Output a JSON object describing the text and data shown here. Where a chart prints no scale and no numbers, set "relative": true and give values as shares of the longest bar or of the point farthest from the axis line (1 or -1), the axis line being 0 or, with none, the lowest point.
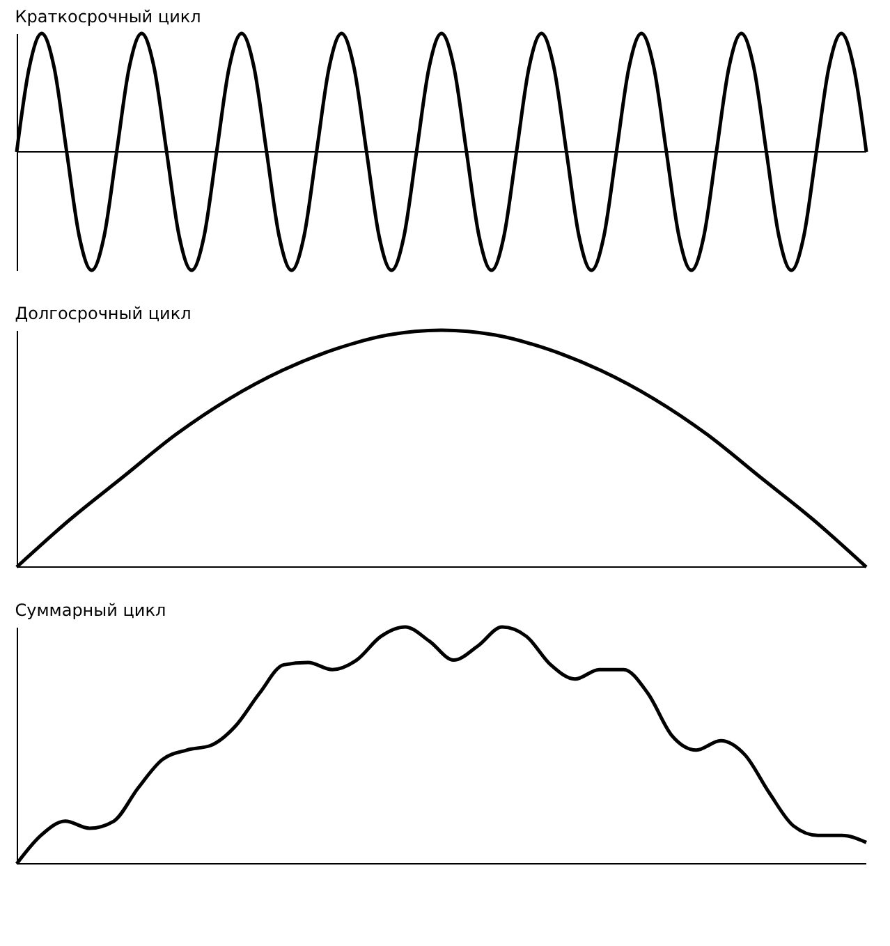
{
  "chart_data": [
    {
      "type": "line",
      "title": "Краткосрочный цикл",
      "relative": true,
      "color": "#000000",
      "categories": [
        null,
        null,
        null,
        null,
        null,
        null,
        null,
        null,
        null,
        null,
        null,
        null,
        null,
        null,
        null,
        null,
        null,
        null,
        null,
        null,
        null,
        null,
        null,
        null,
        null,
        null,
        null,
        null,
        null,
        null,
        null,
        null,
        null,
        null,
        null,
        null,
        null,
        null,
        null,
        null,
        null,
        null,
        null,
        null,
        null,
        null,
        null,
        null,
        null,
        null,
        null,
        null,
        null,
        null,
        null,
        null,
        null,
        null,
        null,
        null,
        null,
        null,
        null,
        null,
        null,
        null,
        null,
        null,
        null
      ],
      "values": [
        0,
        0.71,
        1,
        0.71,
        0,
        -0.71,
        -1,
        -0.71,
        0,
        0.71,
        1,
        0.71,
        0,
        -0.71,
        -1,
        -0.71,
        0,
        0.71,
        1,
        0.71,
        0,
        -0.71,
        -1,
        -0.71,
        0,
        0.71,
        1,
        0.71,
        0,
        -0.71,
        -1,
        -0.71,
        0,
        0.71,
        1,
        0.71,
        0,
        -0.71,
        -1,
        -0.71,
        0,
        0.71,
        1,
        0.71,
        0,
        -0.71,
        -1,
        -0.71,
        0,
        0.71,
        1,
        0.71,
        0,
        -0.71,
        -1,
        -0.71,
        0,
        0.71,
        1,
        0.71,
        0,
        -0.71,
        -1,
        -0.71,
        0,
        0.71,
        1,
        0.71,
        0
      ]
    },
    {
      "type": "line",
      "title": "Долгосрочный цикл",
      "relative": true,
      "color": "#000000",
      "categories": [
        null,
        null,
        null,
        null,
        null,
        null,
        null,
        null,
        null,
        null,
        null,
        null,
        null,
        null,
        null,
        null,
        null
      ],
      "values": [
        0,
        0.2,
        0.38,
        0.56,
        0.71,
        0.83,
        0.92,
        0.98,
        1,
        0.98,
        0.92,
        0.83,
        0.71,
        0.56,
        0.38,
        0.2,
        0
      ]
    },
    {
      "type": "line",
      "title": "Суммарный цикл",
      "relative": true,
      "color": "#000000",
      "categories": [
        null,
        null,
        null,
        null,
        null,
        null,
        null,
        null,
        null,
        null,
        null,
        null,
        null,
        null,
        null,
        null,
        null,
        null,
        null,
        null,
        null,
        null,
        null,
        null,
        null,
        null,
        null,
        null,
        null,
        null,
        null,
        null,
        null,
        null,
        null,
        null
      ],
      "values": [
        0,
        0.12,
        0.18,
        0.15,
        0.18,
        0.32,
        0.44,
        0.48,
        0.5,
        0.58,
        0.72,
        0.84,
        0.85,
        0.82,
        0.86,
        0.96,
        1,
        0.94,
        0.86,
        0.92,
        1,
        0.96,
        0.84,
        0.78,
        0.82,
        0.82,
        0.72,
        0.54,
        0.48,
        0.52,
        0.46,
        0.3,
        0.16,
        0.12,
        0.12,
        0.09
      ]
    }
  ]
}
